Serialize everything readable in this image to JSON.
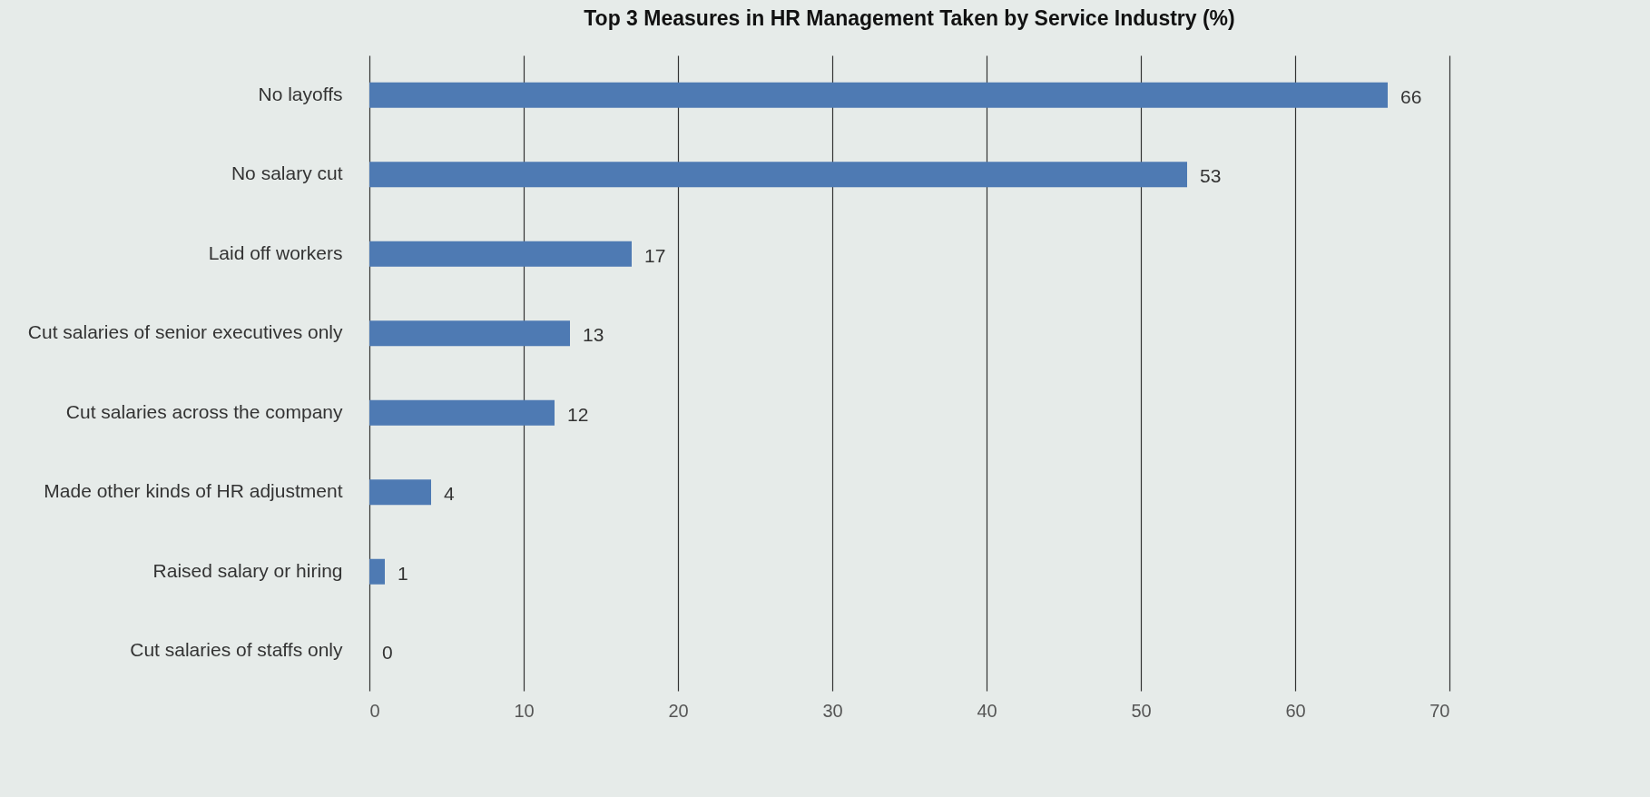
{
  "chart_data": {
    "type": "bar",
    "orientation": "horizontal",
    "title": "Top 3 Measures in HR Management Taken by Service Industry (%)",
    "categories": [
      "No layoffs",
      "No salary cut",
      "Laid off workers",
      "Cut salaries of senior executives only",
      "Cut salaries across the company",
      "Made other kinds of HR adjustment",
      "Raised salary or hiring",
      "Cut salaries of staffs only"
    ],
    "values": [
      66,
      53,
      17,
      13,
      12,
      4,
      1,
      0
    ],
    "color": "#4e7ab3",
    "xlim": [
      0,
      70
    ],
    "xticks": [
      0,
      10,
      20,
      30,
      40,
      50,
      60,
      70
    ],
    "grid": "x",
    "data_labels": true
  }
}
